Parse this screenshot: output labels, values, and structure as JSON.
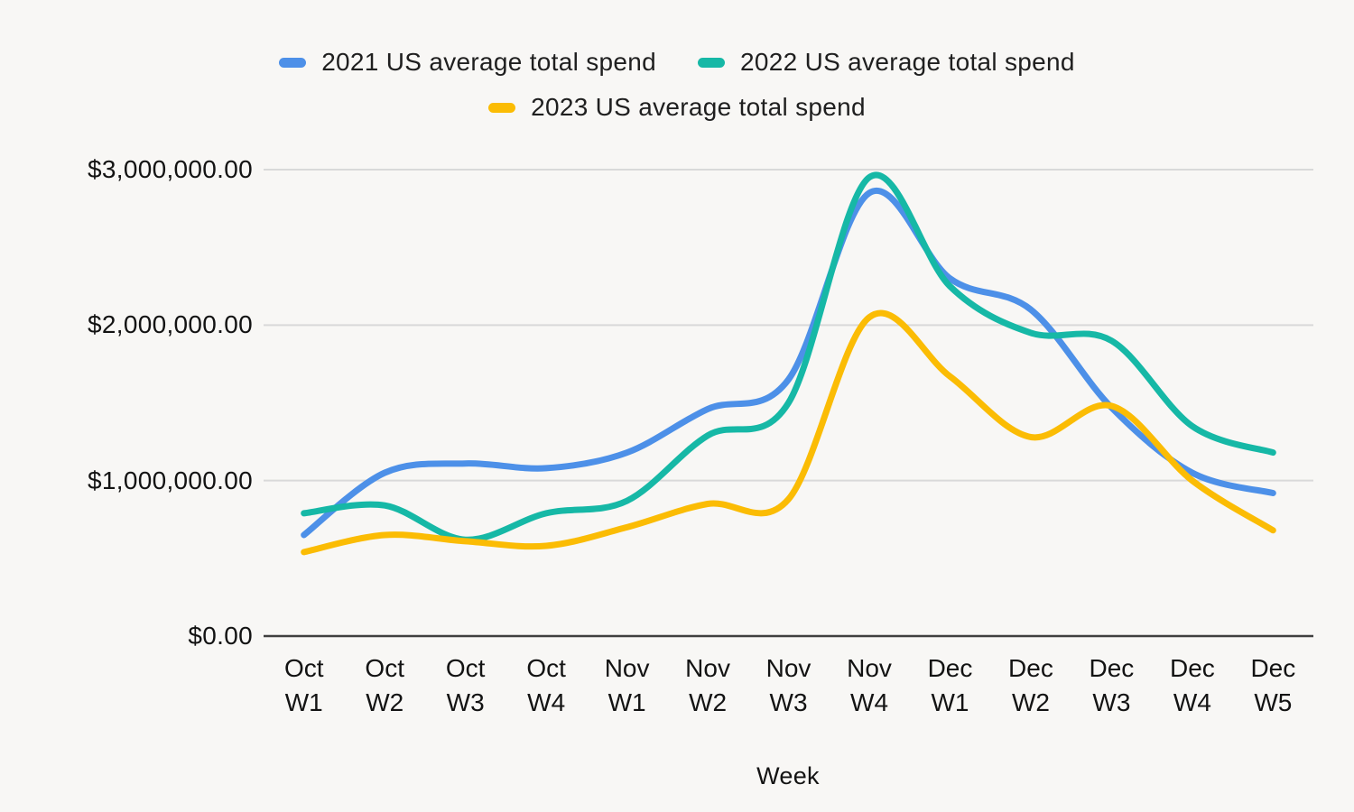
{
  "legend": {
    "items": [
      {
        "label": "2021 US average total spend",
        "color": "#4d90e8"
      },
      {
        "label": "2022 US average total spend",
        "color": "#16b8a6"
      },
      {
        "label": "2023 US average total spend",
        "color": "#fbbc04"
      }
    ]
  },
  "chart_data": {
    "type": "line",
    "smooth": true,
    "title": "",
    "x_axis_label": "Week",
    "grid": true,
    "legend_position": "top",
    "ylim": [
      0,
      3000000
    ],
    "categories": [
      {
        "month": "Oct",
        "week": "W1"
      },
      {
        "month": "Oct",
        "week": "W2"
      },
      {
        "month": "Oct",
        "week": "W3"
      },
      {
        "month": "Oct",
        "week": "W4"
      },
      {
        "month": "Nov",
        "week": "W1"
      },
      {
        "month": "Nov",
        "week": "W2"
      },
      {
        "month": "Nov",
        "week": "W3"
      },
      {
        "month": "Nov",
        "week": "W4"
      },
      {
        "month": "Dec",
        "week": "W1"
      },
      {
        "month": "Dec",
        "week": "W2"
      },
      {
        "month": "Dec",
        "week": "W3"
      },
      {
        "month": "Dec",
        "week": "W4"
      },
      {
        "month": "Dec",
        "week": "W5"
      }
    ],
    "y_ticks": [
      {
        "label": "$0.00",
        "value": 0
      },
      {
        "label": "$1,000,000.00",
        "value": 1000000
      },
      {
        "label": "$2,000,000.00",
        "value": 2000000
      },
      {
        "label": "$3,000,000.00",
        "value": 3000000
      }
    ],
    "series": [
      {
        "name": "2021 US average total spend",
        "color": "#4d90e8",
        "values": [
          650000,
          1050000,
          1110000,
          1080000,
          1180000,
          1460000,
          1650000,
          2850000,
          2300000,
          2100000,
          1470000,
          1050000,
          920000
        ]
      },
      {
        "name": "2022 US average total spend",
        "color": "#16b8a6",
        "values": [
          790000,
          840000,
          620000,
          790000,
          870000,
          1290000,
          1500000,
          2950000,
          2250000,
          1950000,
          1900000,
          1350000,
          1180000
        ]
      },
      {
        "name": "2023 US average total spend",
        "color": "#fbbc04",
        "values": [
          540000,
          650000,
          610000,
          580000,
          700000,
          850000,
          880000,
          2050000,
          1670000,
          1280000,
          1480000,
          1000000,
          680000
        ]
      }
    ],
    "gridline_color": "#d9d9d9",
    "axis_line_color": "#3f3f3f",
    "background_color": "#f8f7f5"
  }
}
